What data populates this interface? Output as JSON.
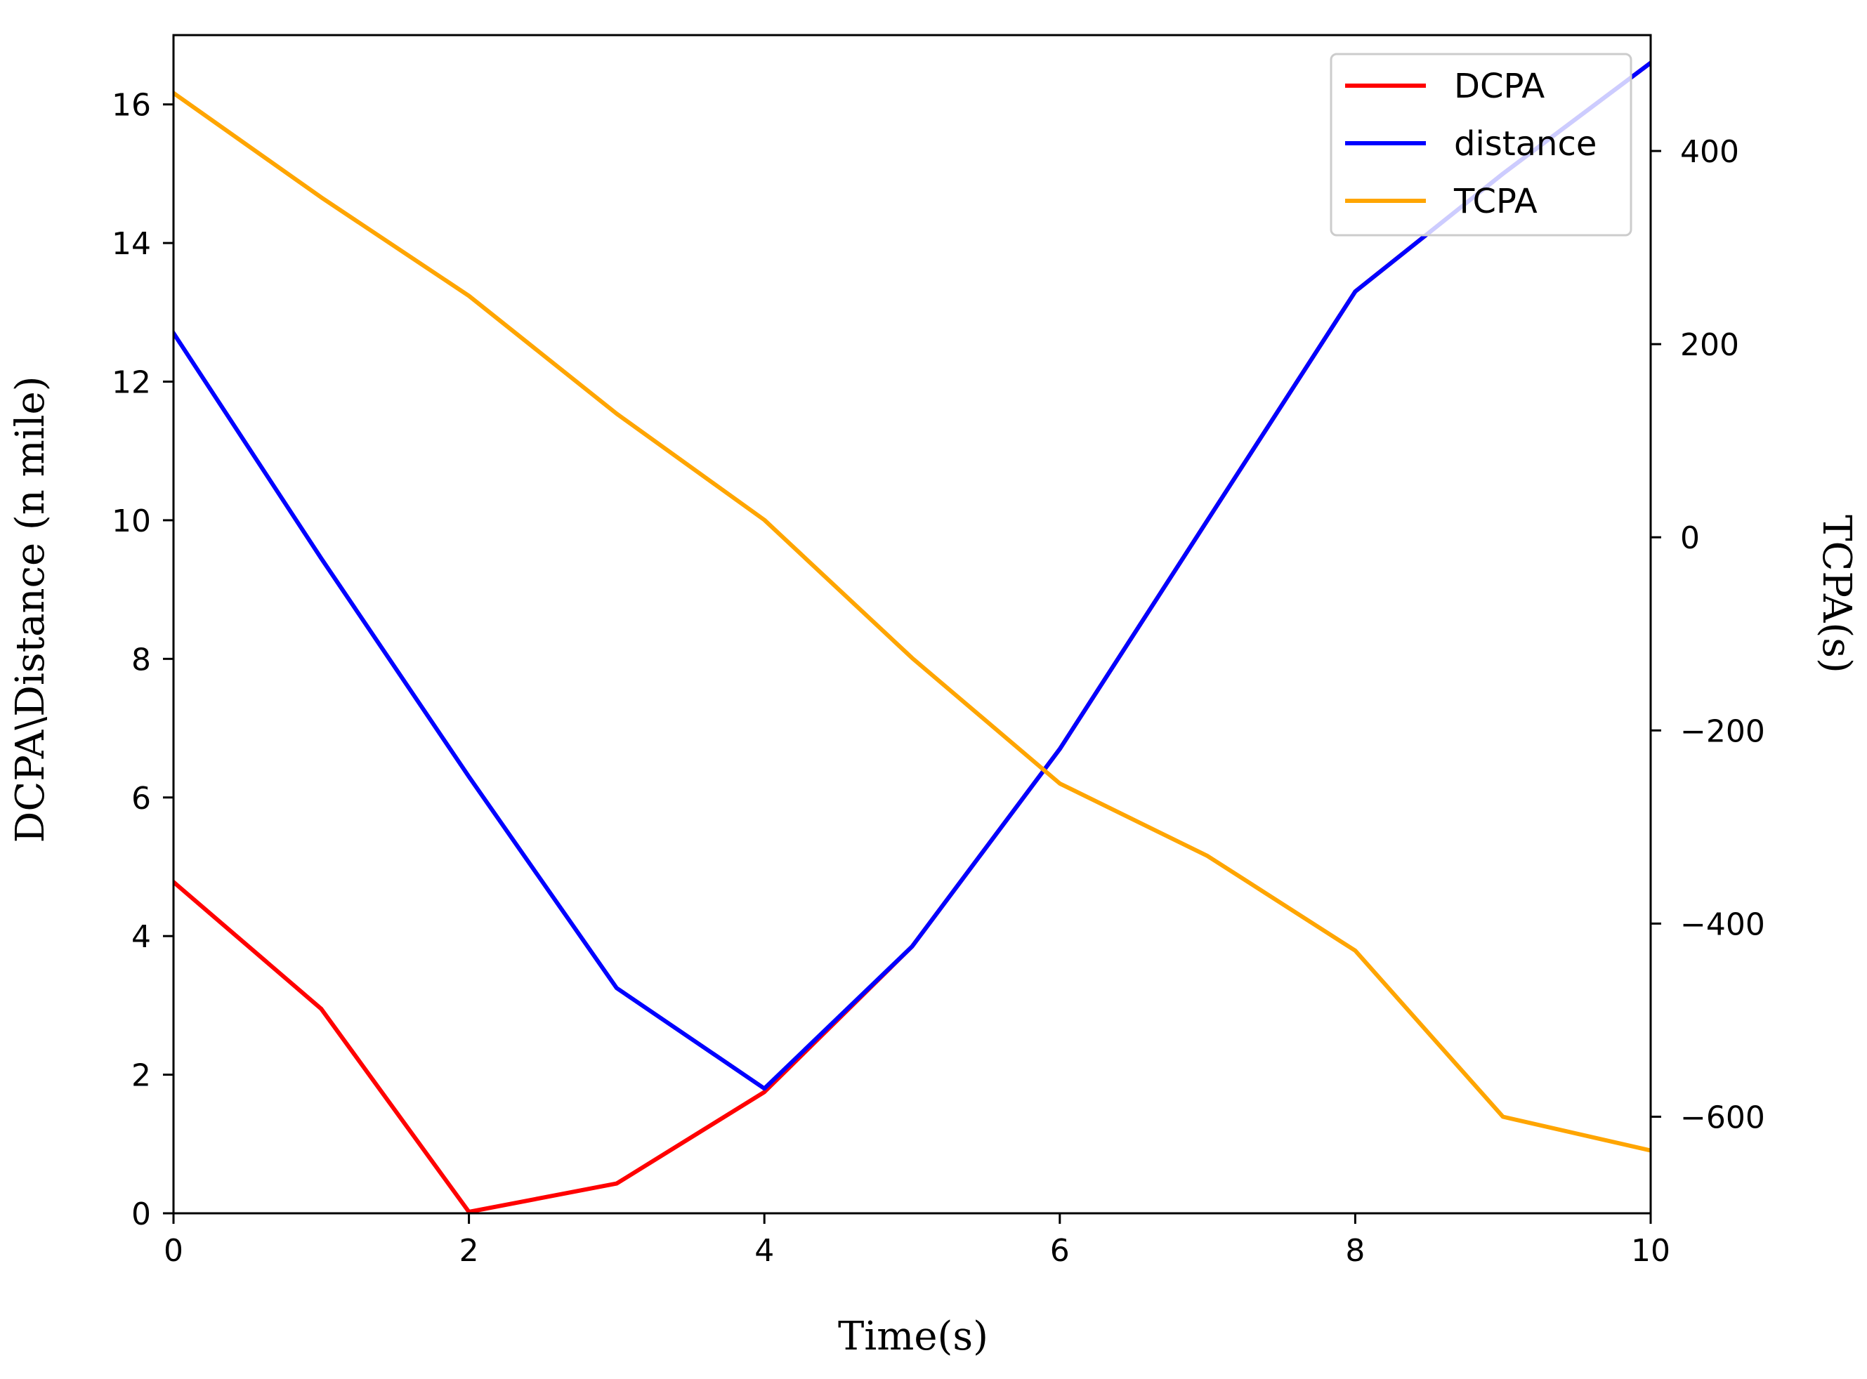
{
  "chart_data": {
    "type": "line",
    "x": [
      0,
      1,
      2,
      3,
      4,
      5,
      6,
      7,
      8,
      9,
      10
    ],
    "xlabel": "Time(s)",
    "ylabel_left": "DCPA\\Distance (n mile)",
    "ylabel_right": "TCPA(s)",
    "xlim": [
      0,
      10
    ],
    "ylim_left": [
      0,
      17
    ],
    "ylim_right": [
      -700,
      520
    ],
    "xticks": [
      0,
      2,
      4,
      6,
      8,
      10
    ],
    "yticks_left": [
      0,
      2,
      4,
      6,
      8,
      10,
      12,
      14,
      16
    ],
    "yticks_right": [
      -600,
      -400,
      -200,
      0,
      200,
      400
    ],
    "ytick_labels_right": [
      "−600",
      "−400",
      "−200",
      "0",
      "200",
      "400"
    ],
    "grid": false,
    "legend_position": "top-right",
    "series": [
      {
        "name": "DCPA",
        "axis": "left",
        "color": "#ff0000",
        "values": [
          4.78,
          2.95,
          0.02,
          0.43,
          1.75,
          3.85,
          6.7,
          10.0,
          13.3,
          15.0,
          16.6
        ]
      },
      {
        "name": "distance",
        "axis": "left",
        "color": "#0000ff",
        "values": [
          12.7,
          9.45,
          6.3,
          3.25,
          1.8,
          3.85,
          6.7,
          10.0,
          13.3,
          15.0,
          16.6
        ]
      },
      {
        "name": "TCPA",
        "axis": "right",
        "color": "#ffa500",
        "values": [
          460,
          352,
          250,
          128,
          18,
          -125,
          -255,
          -330,
          -428,
          -600,
          -635
        ]
      }
    ]
  }
}
